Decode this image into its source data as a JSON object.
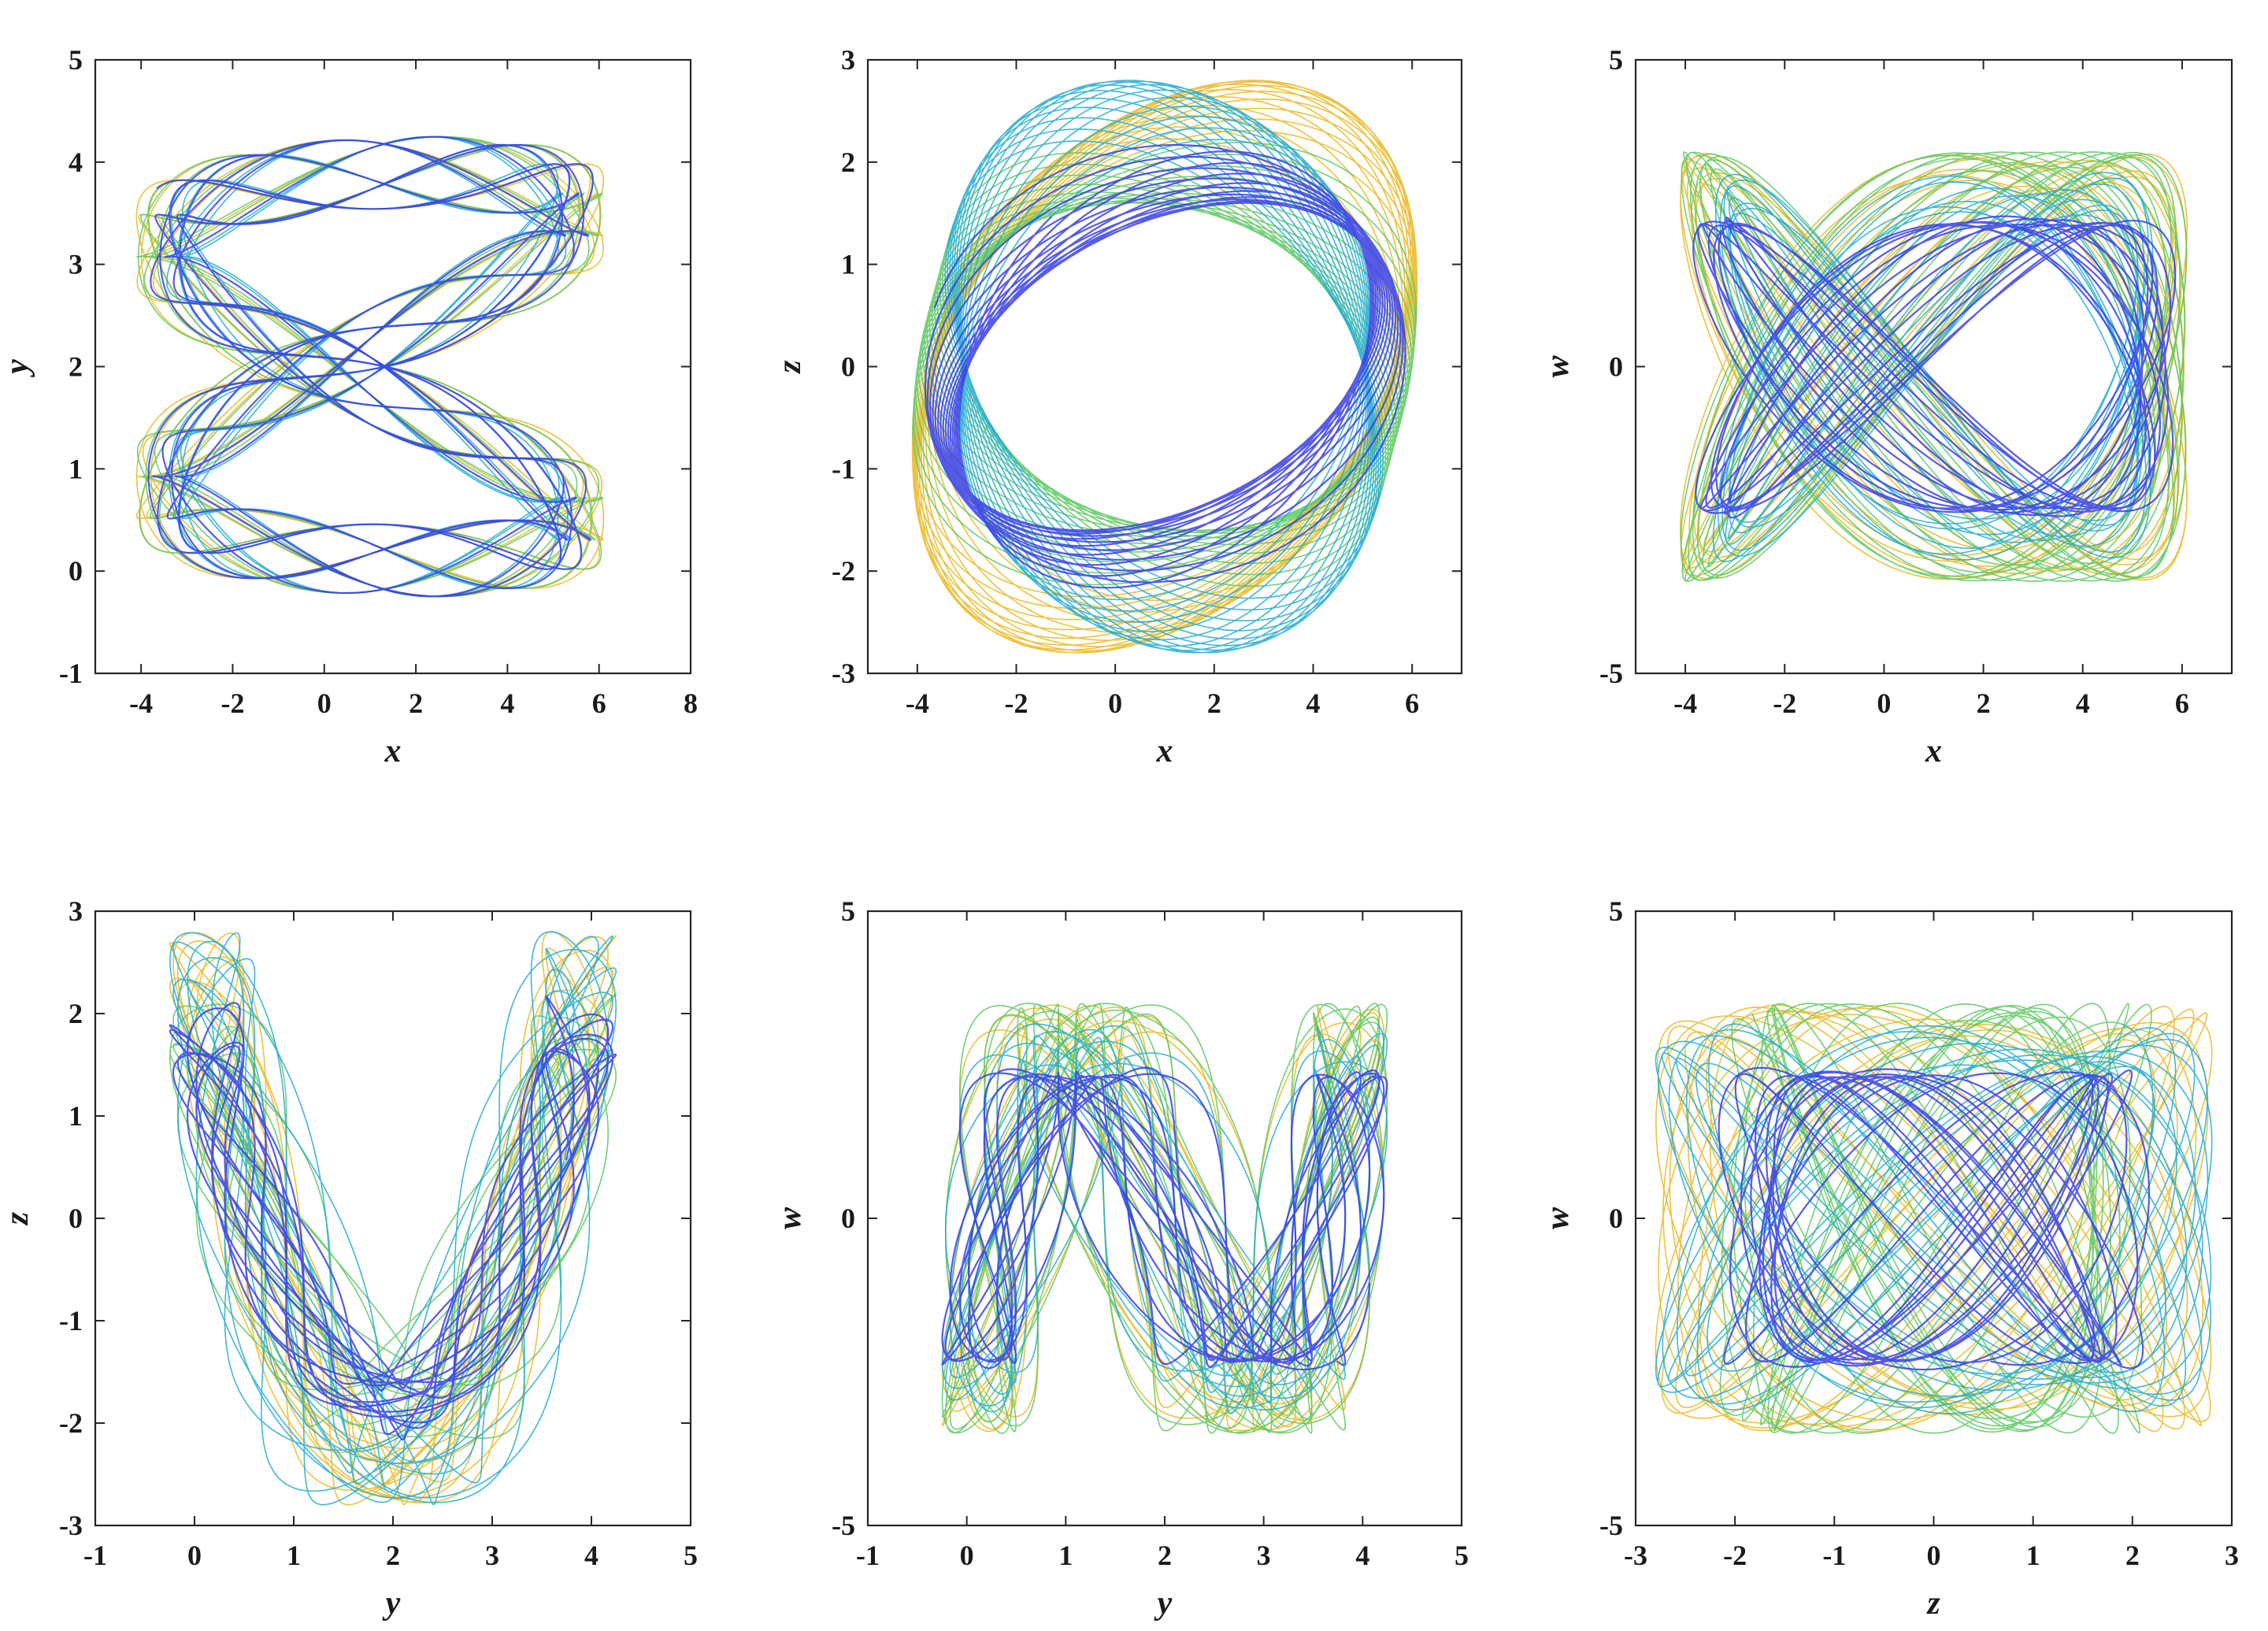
{
  "chart_data": [
    {
      "id": "p1",
      "type": "line",
      "xlabel": "x",
      "ylabel": "y",
      "xlim": [
        -5,
        8
      ],
      "ylim": [
        -1,
        5
      ],
      "xticks": [
        -4,
        -2,
        0,
        2,
        4,
        6,
        8
      ],
      "yticks": [
        -1,
        0,
        1,
        2,
        3,
        4,
        5
      ],
      "color_map": "parula"
    },
    {
      "id": "p2",
      "type": "line",
      "xlabel": "x",
      "ylabel": "z",
      "xlim": [
        -5,
        7
      ],
      "ylim": [
        -3,
        3
      ],
      "xticks": [
        -4,
        -2,
        0,
        2,
        4,
        6
      ],
      "yticks": [
        -3,
        -2,
        -1,
        0,
        1,
        2,
        3
      ],
      "color_map": "parula"
    },
    {
      "id": "p3",
      "type": "line",
      "xlabel": "x",
      "ylabel": "w",
      "xlim": [
        -5,
        7
      ],
      "ylim": [
        -5,
        5
      ],
      "xticks": [
        -4,
        -2,
        0,
        2,
        4,
        6
      ],
      "yticks": [
        -5,
        0,
        5
      ],
      "color_map": "parula"
    },
    {
      "id": "p4",
      "type": "line",
      "xlabel": "y",
      "ylabel": "z",
      "xlim": [
        -1,
        5
      ],
      "ylim": [
        -3,
        3
      ],
      "xticks": [
        -1,
        0,
        1,
        2,
        3,
        4,
        5
      ],
      "yticks": [
        -3,
        -2,
        -1,
        0,
        1,
        2,
        3
      ],
      "color_map": "parula"
    },
    {
      "id": "p5",
      "type": "line",
      "xlabel": "y",
      "ylabel": "w",
      "xlim": [
        -1,
        5
      ],
      "ylim": [
        -5,
        5
      ],
      "xticks": [
        -1,
        0,
        1,
        2,
        3,
        4,
        5
      ],
      "yticks": [
        -5,
        0,
        5
      ],
      "color_map": "parula"
    },
    {
      "id": "p6",
      "type": "line",
      "xlabel": "z",
      "ylabel": "w",
      "xlim": [
        -3,
        3
      ],
      "ylim": [
        -5,
        5
      ],
      "xticks": [
        -3,
        -2,
        -1,
        0,
        1,
        2,
        3
      ],
      "yticks": [
        -5,
        0,
        5
      ],
      "color_map": "parula"
    }
  ],
  "colors": {
    "trace": [
      "#eab720",
      "#5bc860",
      "#1eaad2",
      "#3a3ee6"
    ],
    "frame": "#262626",
    "text": "#1a1a1a"
  }
}
